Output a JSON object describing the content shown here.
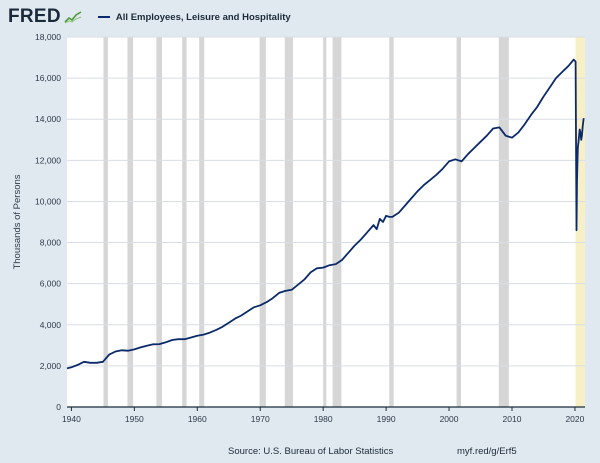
{
  "brand": {
    "name": "FRED",
    "icon": "fred-chart-icon"
  },
  "colors": {
    "background": "#e1e9f0",
    "plot_background": "#ffffff",
    "series": "#0b2a6b",
    "recession": "#d6d6d6",
    "highlight": "#f7efc6",
    "grid": "#d9dee4"
  },
  "footer": {
    "source": "Source: U.S. Bureau of Labor Statistics",
    "link": "myf.red/g/Erf5"
  },
  "chart_data": {
    "type": "line",
    "title": "",
    "ylabel": "Thousands of Persons",
    "xlabel": "",
    "xlim": [
      1939.3,
      2021.6
    ],
    "ylim": [
      0,
      18000
    ],
    "grid": "horizontal",
    "legend_position": "top-left",
    "y_ticks": [
      0,
      2000,
      4000,
      6000,
      8000,
      10000,
      12000,
      14000,
      16000,
      18000
    ],
    "y_tick_labels": [
      "0",
      "2,000",
      "4,000",
      "6,000",
      "8,000",
      "10,000",
      "12,000",
      "14,000",
      "16,000",
      "18,000"
    ],
    "x_ticks": [
      1940,
      1950,
      1960,
      1970,
      1980,
      1990,
      2000,
      2010,
      2020
    ],
    "x_tick_labels": [
      "1940",
      "1950",
      "1960",
      "1970",
      "1980",
      "1990",
      "2000",
      "2010",
      "2020"
    ],
    "recessions": [
      [
        1945.1,
        1945.8
      ],
      [
        1948.9,
        1949.8
      ],
      [
        1953.5,
        1954.4
      ],
      [
        1957.6,
        1958.3
      ],
      [
        1960.3,
        1961.1
      ],
      [
        1969.9,
        1970.9
      ],
      [
        1973.9,
        1975.2
      ],
      [
        1980.0,
        1980.5
      ],
      [
        1981.5,
        1982.9
      ],
      [
        1990.5,
        1991.2
      ],
      [
        2001.2,
        2001.9
      ],
      [
        2007.9,
        2009.5
      ]
    ],
    "highlight": [
      2020.1,
      2021.6
    ],
    "series": [
      {
        "name": "All Employees, Leisure and Hospitality",
        "x": [
          1939.3,
          1940.0,
          1941.0,
          1942.0,
          1943.0,
          1944.0,
          1945.0,
          1946.0,
          1947.0,
          1948.0,
          1949.0,
          1950.0,
          1951.0,
          1952.0,
          1953.0,
          1954.0,
          1955.0,
          1956.0,
          1957.0,
          1958.0,
          1959.0,
          1960.0,
          1961.0,
          1962.0,
          1963.0,
          1964.0,
          1965.0,
          1966.0,
          1967.0,
          1968.0,
          1969.0,
          1970.0,
          1971.0,
          1972.0,
          1973.0,
          1974.0,
          1975.0,
          1976.0,
          1977.0,
          1978.0,
          1979.0,
          1980.0,
          1981.0,
          1982.0,
          1983.0,
          1984.0,
          1985.0,
          1986.0,
          1987.0,
          1988.0,
          1988.5,
          1989.0,
          1989.5,
          1990.0,
          1990.5,
          1991.0,
          1992.0,
          1993.0,
          1994.0,
          1995.0,
          1996.0,
          1997.0,
          1998.0,
          1999.0,
          2000.0,
          2001.0,
          2002.0,
          2003.0,
          2004.0,
          2005.0,
          2006.0,
          2007.0,
          2008.0,
          2009.0,
          2010.0,
          2011.0,
          2012.0,
          2013.0,
          2014.0,
          2015.0,
          2016.0,
          2017.0,
          2018.0,
          2019.0,
          2019.8,
          2020.1,
          2020.25,
          2020.33,
          2020.45,
          2020.6,
          2020.75,
          2020.9,
          2021.0,
          2021.1,
          2021.25,
          2021.4
        ],
        "values": [
          1880,
          1930,
          2050,
          2200,
          2150,
          2150,
          2200,
          2550,
          2700,
          2760,
          2740,
          2800,
          2900,
          2980,
          3050,
          3060,
          3150,
          3260,
          3300,
          3300,
          3380,
          3470,
          3520,
          3620,
          3750,
          3900,
          4100,
          4300,
          4450,
          4650,
          4850,
          4950,
          5100,
          5300,
          5550,
          5650,
          5700,
          5950,
          6200,
          6550,
          6750,
          6780,
          6900,
          6950,
          7150,
          7500,
          7850,
          8150,
          8500,
          8850,
          8650,
          9150,
          9000,
          9300,
          9250,
          9250,
          9450,
          9800,
          10150,
          10500,
          10800,
          11050,
          11300,
          11600,
          11950,
          12050,
          11950,
          12300,
          12600,
          12900,
          13200,
          13550,
          13600,
          13200,
          13100,
          13350,
          13750,
          14200,
          14600,
          15100,
          15550,
          16000,
          16300,
          16600,
          16900,
          16800,
          8600,
          11000,
          12600,
          13000,
          13500,
          13300,
          13000,
          13200,
          13700,
          14050
        ]
      }
    ]
  }
}
